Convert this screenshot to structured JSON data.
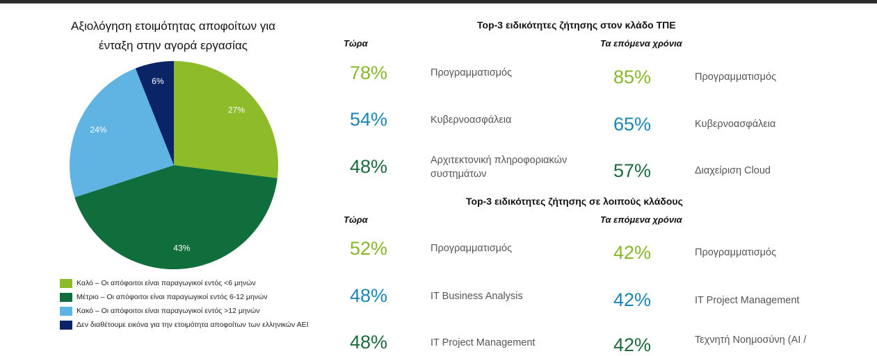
{
  "pie": {
    "title_line1": "Αξιολόγηση ετοιμότητας αποφοίτων για",
    "title_line2": "ένταξη στην αγορά εργασίας"
  },
  "chart_data": {
    "type": "pie",
    "slices": [
      {
        "label": "Καλό – Οι απόφοιτοι είναι παραγωγικοί εντός <6 μηνών",
        "value": 27,
        "display": "27%",
        "color": "#8dbb2a"
      },
      {
        "label": "Μέτριο – Οι απόφοιτοι είναι παραγωγικοί εντός 6-12 μηνών",
        "value": 43,
        "display": "43%",
        "color": "#0f6e3b"
      },
      {
        "label": "Κακό – Οι απόφοιτοι είναι παραγωγικοί εντός >12 μηνών",
        "value": 24,
        "display": "24%",
        "color": "#5fb4e3"
      },
      {
        "label": "Δεν διαθέτουμε εικόνα για την ετοιμότητα αποφοίτων των ελληνικών ΑΕΙ",
        "value": 6,
        "display": "6%",
        "color": "#0a2466"
      }
    ]
  },
  "colors": {
    "light_green": "#86b82a",
    "blue": "#1a86b8",
    "dark_green": "#1b6b3c"
  },
  "ict": {
    "title": "Top-3 ειδικότητες ζήτησης στον κλάδο ΤΠΕ",
    "now_header": "Τώρα",
    "future_header": "Τα επόμενα χρόνια",
    "now": [
      {
        "pct": "78%",
        "label": "Προγραμματισμός"
      },
      {
        "pct": "54%",
        "label": "Κυβερνοασφάλεια"
      },
      {
        "pct": "48%",
        "label": "Αρχιτεκτονική πληροφοριακών συστημάτων"
      }
    ],
    "future": [
      {
        "pct": "85%",
        "label": "Προγραμματισμός"
      },
      {
        "pct": "65%",
        "label": "Κυβερνοασφάλεια"
      },
      {
        "pct": "57%",
        "label": "Διαχείριση Cloud"
      }
    ]
  },
  "other": {
    "title": "Top-3 ειδικότητες ζήτησης σε λοιπούς κλάδους",
    "now_header": "Τώρα",
    "future_header": "Τα επόμενα χρόνια",
    "now": [
      {
        "pct": "52%",
        "label": "Προγραμματισμός"
      },
      {
        "pct": "48%",
        "label": "IT Business Analysis"
      },
      {
        "pct": "48%",
        "label": "IT Project Management"
      }
    ],
    "future": [
      {
        "pct": "42%",
        "label": "Προγραμματισμός"
      },
      {
        "pct": "42%",
        "label": "IT Project Management"
      },
      {
        "pct": "42%",
        "label": "Τεχνητή Νοημοσύνη (AI /"
      }
    ]
  }
}
